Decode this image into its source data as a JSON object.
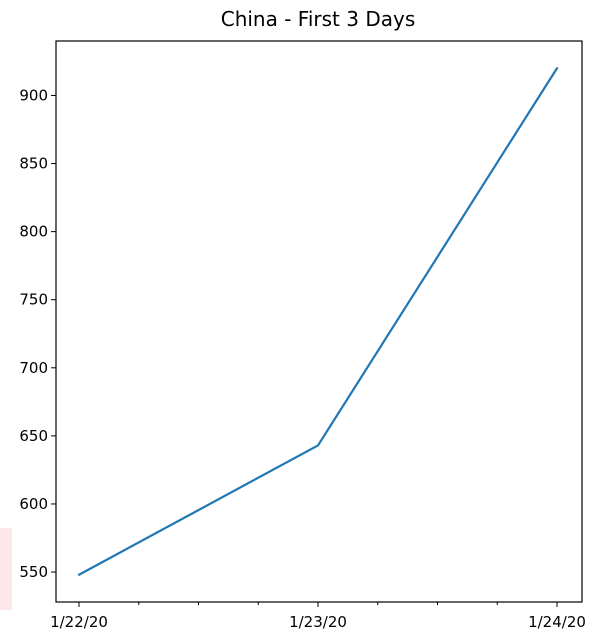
{
  "chart_data": {
    "type": "line",
    "title": "China - First 3 Days",
    "xlabel": "",
    "ylabel": "",
    "x": [
      "1/22/20",
      "1/23/20",
      "1/24/20"
    ],
    "series": [
      {
        "values": [
          548,
          643,
          920
        ],
        "color": "#1f77b4"
      }
    ],
    "ylim": [
      528,
      940
    ],
    "yticks": [
      550,
      600,
      650,
      700,
      750,
      800,
      850,
      900
    ],
    "minor_xticks_between": 3,
    "grid": false,
    "legend": "none"
  },
  "colors": {
    "line": "#1f77b4",
    "axes": "#000000",
    "background": "#ffffff",
    "edge_accent": "#fde7ea"
  }
}
